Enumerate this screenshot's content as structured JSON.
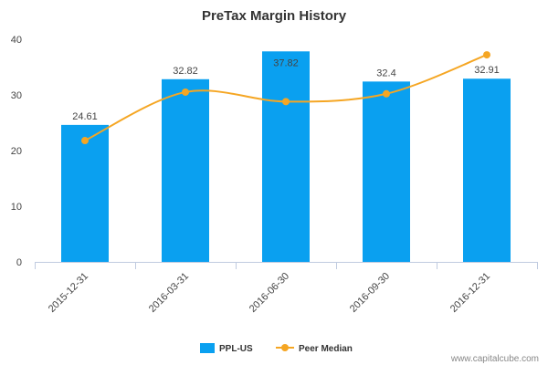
{
  "chart_data": {
    "type": "bar",
    "title": "PreTax Margin History",
    "categories": [
      "2015-12-31",
      "2016-03-31",
      "2016-06-30",
      "2016-09-30",
      "2016-12-31"
    ],
    "series": [
      {
        "name": "PPL-US",
        "type": "bar",
        "color": "#0aa0f0",
        "values": [
          24.61,
          32.82,
          37.82,
          32.4,
          32.91
        ],
        "labels": [
          "24.61",
          "32.82",
          "37.82",
          "32.4",
          "32.91"
        ]
      },
      {
        "name": "Peer Median",
        "type": "line",
        "color": "#f5a623",
        "values": [
          21.8,
          30.5,
          28.8,
          30.2,
          37.2
        ]
      }
    ],
    "yticks": [
      0,
      10,
      20,
      30,
      40
    ],
    "ylim": [
      0,
      40
    ],
    "legend_position": "bottom-center",
    "grid": false
  },
  "credit": "www.capitalcube.com"
}
